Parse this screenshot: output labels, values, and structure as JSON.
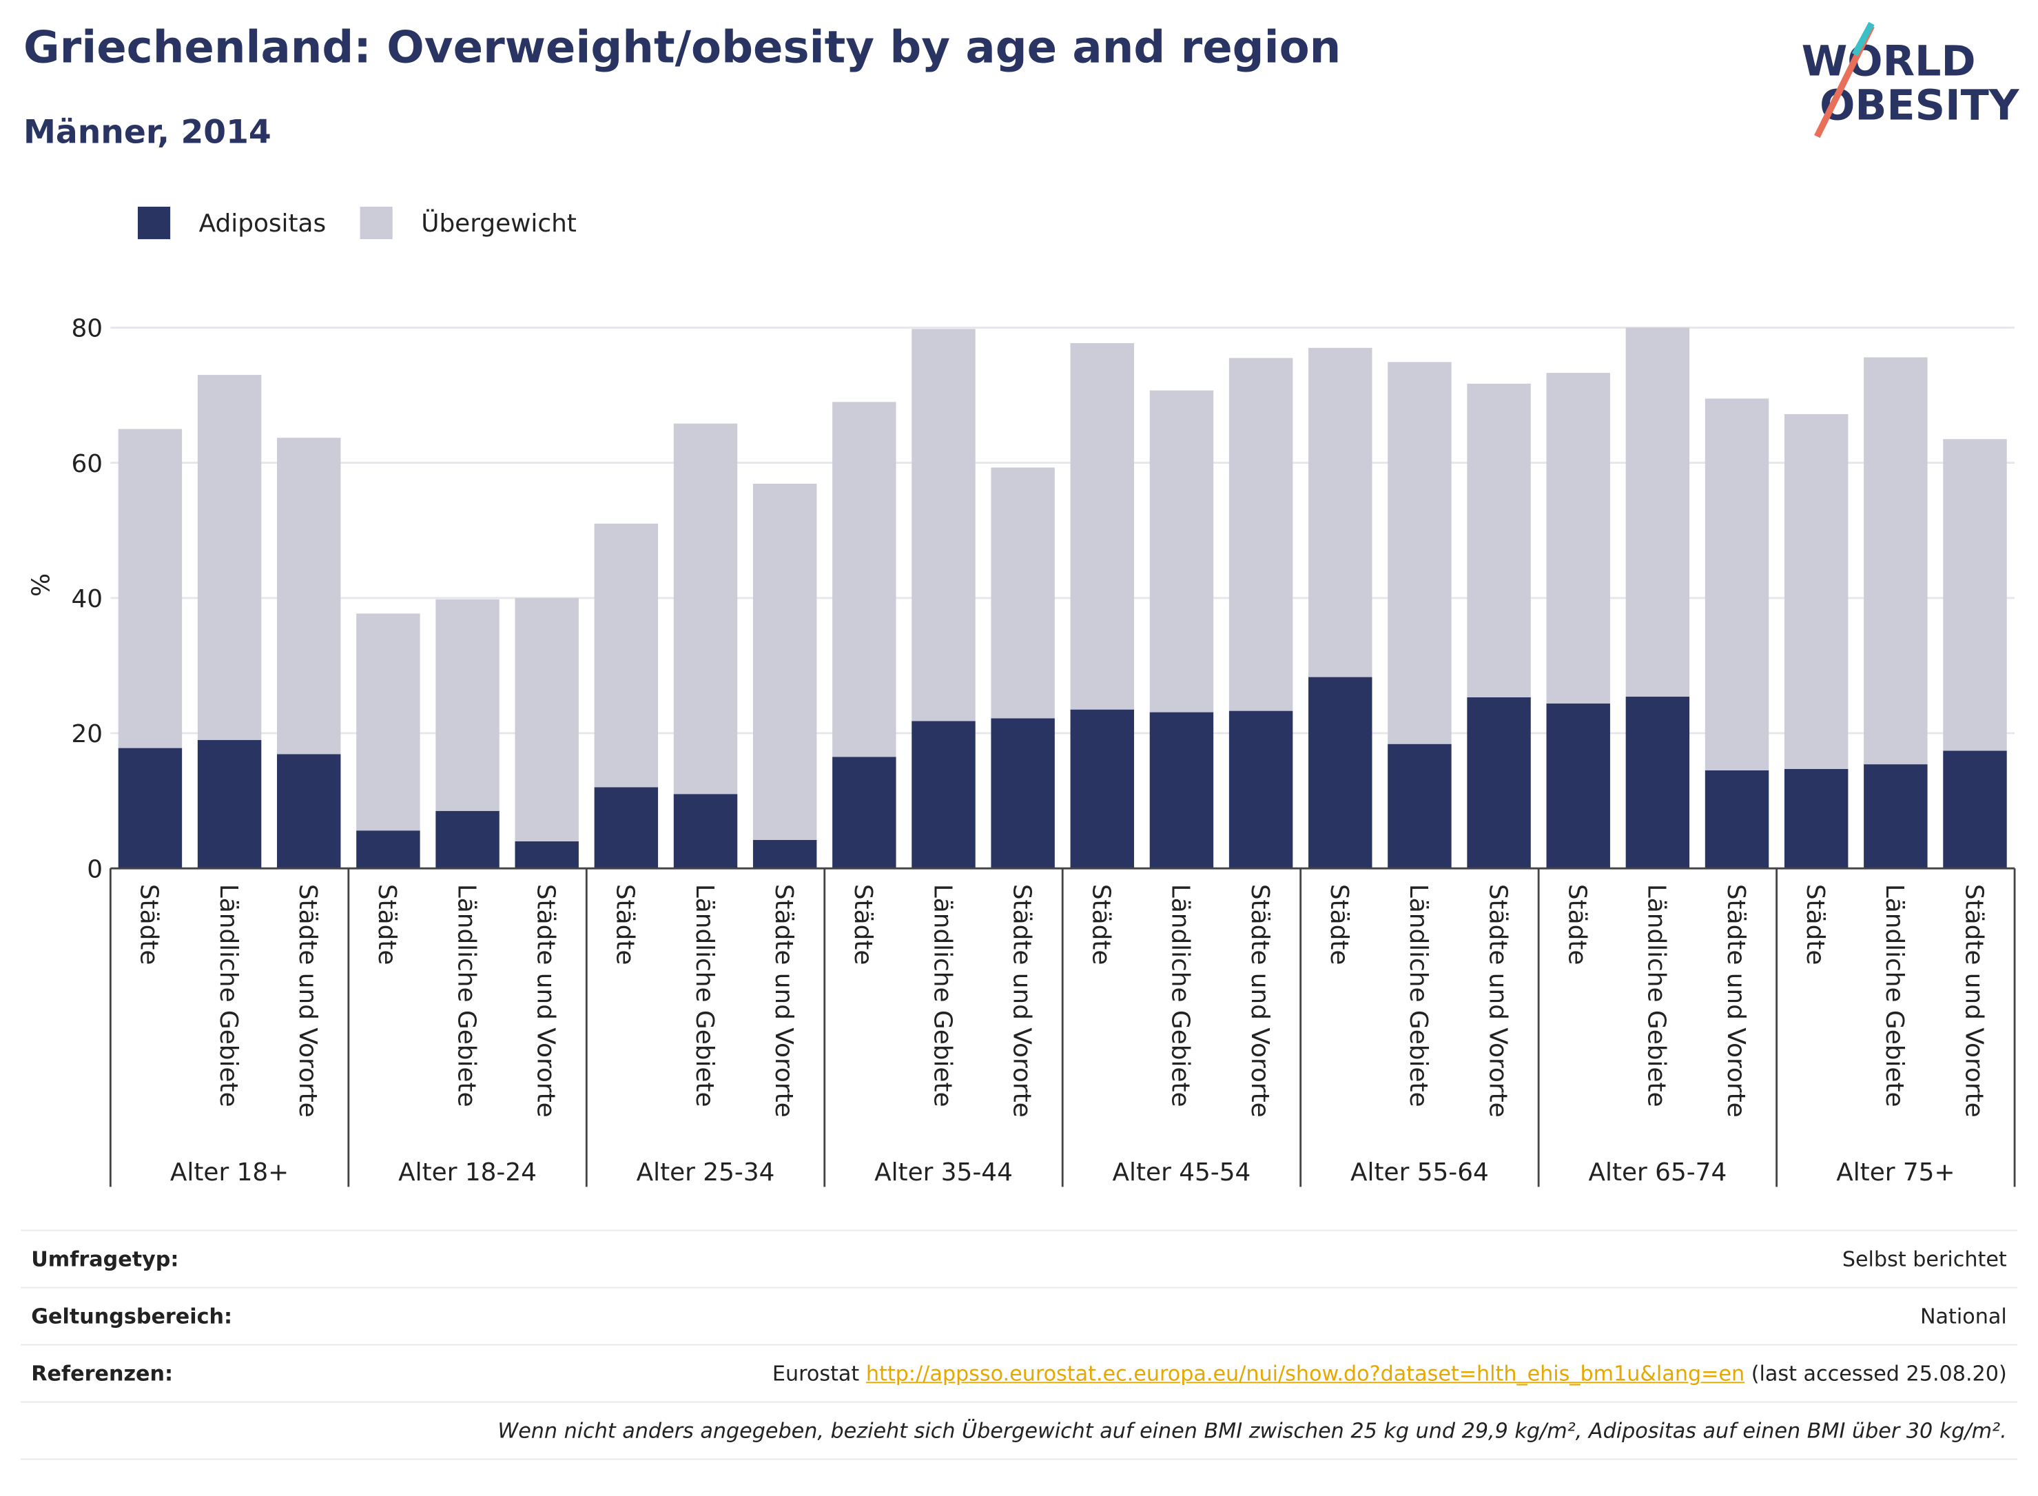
{
  "logo": [
    "WORLD",
    "OBESITY"
  ],
  "chart_data": {
    "type": "bar",
    "stacked": true,
    "title": "Griechenland: Overweight/obesity by age and region",
    "subtitle": "Männer, 2014",
    "ylabel": "%",
    "groups": [
      "Alter 18+",
      "Alter 18-24",
      "Alter 25-34",
      "Alter 35-44",
      "Alter 45-54",
      "Alter 55-64",
      "Alter 65-74",
      "Alter 75+"
    ],
    "categories": [
      "Städte",
      "Ländliche Gebiete",
      "Städte und Vororte",
      "Städte",
      "Ländliche Gebiete",
      "Städte und Vororte",
      "Städte",
      "Ländliche Gebiete",
      "Städte und Vororte",
      "Städte",
      "Ländliche Gebiete",
      "Städte und Vororte",
      "Städte",
      "Ländliche Gebiete",
      "Städte und Vororte",
      "Städte",
      "Ländliche Gebiete",
      "Städte und Vororte",
      "Städte",
      "Ländliche Gebiete",
      "Städte und Vororte",
      "Städte",
      "Ländliche Gebiete",
      "Städte und Vororte"
    ],
    "series": [
      {
        "name": "Adipositas",
        "color": "#293462",
        "values": [
          17.8,
          19,
          16.9,
          5.6,
          8.5,
          4,
          12,
          11,
          4.2,
          16.5,
          21.8,
          22.2,
          23.5,
          23.1,
          23.3,
          28.3,
          18.4,
          25.3,
          24.4,
          25.4,
          14.5,
          14.7,
          15.4,
          17.4
        ]
      },
      {
        "name": "Übergewicht",
        "color": "#cbccd8",
        "values": [
          47.2,
          54,
          46.8,
          32.1,
          31.3,
          36,
          39,
          54.8,
          52.7,
          52.5,
          58,
          37.1,
          54.2,
          47.6,
          52.2,
          48.7,
          56.5,
          46.4,
          48.9,
          54.6,
          55,
          52.5,
          60.2,
          46.1
        ]
      }
    ],
    "ylim": [
      0,
      80
    ],
    "yticks": [
      0,
      20,
      40,
      60,
      80
    ],
    "grid": true,
    "legend": "top-left"
  },
  "footer": {
    "rows": [
      {
        "label": "Umfragetyp:",
        "value": "Selbst berichtet"
      },
      {
        "label": "Geltungsbereich:",
        "value": "National"
      },
      {
        "label": "Referenzen:",
        "source": "Eurostat",
        "link": "http://appsso.eurostat.ec.europa.eu/nui/show.do?dataset=hlth_ehis_bm1u&lang=en",
        "note": "(last accessed 25.08.20)"
      }
    ],
    "footnote": "Wenn nicht anders angegeben, bezieht sich Übergewicht auf einen BMI zwischen 25 kg und 29,9 kg/m², Adipositas auf einen BMI über 30 kg/m²."
  }
}
